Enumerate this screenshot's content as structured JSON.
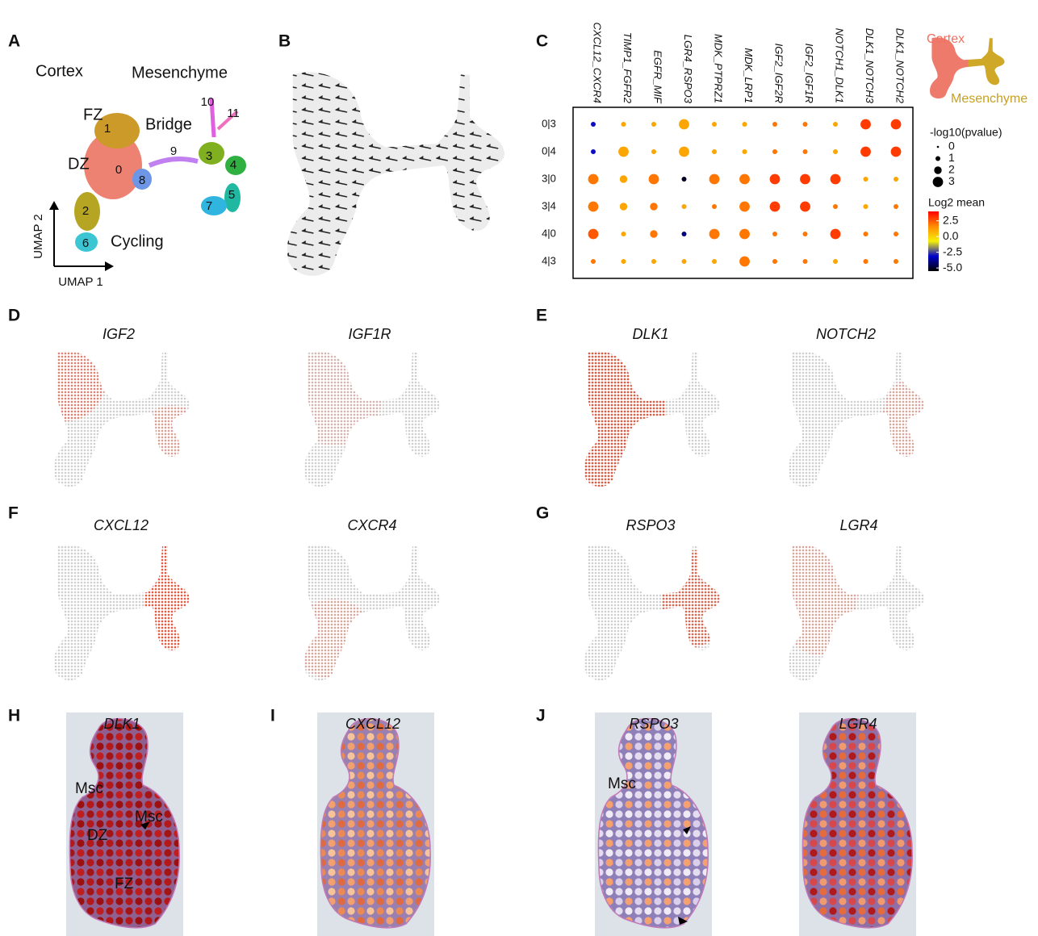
{
  "figure": {
    "a": {
      "label": "A",
      "regions": [
        "Cortex",
        "Mesenchyme",
        "FZ",
        "Bridge",
        "DZ",
        "Cycling"
      ],
      "clusters": [
        "0",
        "1",
        "2",
        "3",
        "4",
        "5",
        "6",
        "7",
        "8",
        "9",
        "10",
        "11"
      ],
      "axes": [
        "UMAP 2",
        "UMAP 1"
      ]
    },
    "b": {
      "label": "B"
    },
    "d": {
      "label": "D",
      "genes": [
        "IGF2",
        "IGF1R"
      ]
    },
    "e": {
      "label": "E",
      "genes": [
        "DLK1",
        "NOTCH2"
      ]
    },
    "f": {
      "label": "F",
      "genes": [
        "CXCL12",
        "CXCR4"
      ]
    },
    "g": {
      "label": "G",
      "genes": [
        "RSPO3",
        "LGR4"
      ]
    },
    "h": {
      "label": "H",
      "genes": [
        "DLK1"
      ],
      "annotations": [
        "Msc",
        "Msc",
        "DZ",
        "FZ"
      ]
    },
    "i": {
      "label": "I",
      "genes": [
        "CXCL12"
      ]
    },
    "j": {
      "label": "J",
      "genes": [
        "RSPO3",
        "LGR4"
      ],
      "annotations": [
        "Msc"
      ]
    }
  },
  "chart_data": {
    "type": "dotplot",
    "panel_label": "C",
    "inset_labels": [
      "Cortex",
      "Mesenchyme"
    ],
    "categories": [
      "CXCL12_CXCR4",
      "TIMP1_FGFR2",
      "EGFR_MIF",
      "LGR4_RSPO3",
      "MDK_PTPRZ1",
      "MDK_LRP1",
      "IGF2_IGF2R",
      "IGF2_IGF1R",
      "NOTCH1_DLK1",
      "DLK1_NOTCH3",
      "DLK1_NOTCH2"
    ],
    "rows": [
      "0|3",
      "0|4",
      "3|0",
      "3|4",
      "4|0",
      "4|3"
    ],
    "log2_mean": [
      [
        -3,
        1,
        1,
        1,
        1,
        1,
        2,
        2,
        1,
        3,
        3
      ],
      [
        -3,
        1,
        1,
        1,
        1,
        1,
        2,
        2,
        1,
        3,
        3
      ],
      [
        2,
        1,
        2,
        -5,
        2,
        2,
        3,
        3,
        3,
        1,
        1
      ],
      [
        2,
        1,
        2,
        1,
        2,
        2,
        3,
        3,
        2,
        1,
        2
      ],
      [
        2.5,
        1,
        2,
        -4,
        2,
        2,
        2,
        2,
        3,
        2,
        2
      ],
      [
        2,
        1,
        1,
        1,
        1,
        2,
        2,
        2,
        1,
        2,
        2
      ]
    ],
    "neg_log10_pvalue": [
      [
        1,
        1,
        1,
        3,
        1,
        1,
        1,
        1,
        1,
        3,
        3
      ],
      [
        1,
        3,
        1,
        3,
        1,
        1,
        1,
        1,
        1,
        3,
        3
      ],
      [
        3,
        2,
        3,
        1,
        3,
        3,
        3,
        3,
        3,
        1,
        1
      ],
      [
        3,
        2,
        2,
        1,
        1,
        3,
        3,
        3,
        1,
        1,
        1
      ],
      [
        3,
        1,
        2,
        1,
        3,
        3,
        1,
        1,
        3,
        1,
        1
      ],
      [
        1,
        1,
        1,
        1,
        1,
        3,
        1,
        1,
        1,
        1,
        1
      ]
    ],
    "size_legend": {
      "title": "-log10(pvalue)",
      "ticks": [
        0,
        1,
        2,
        3
      ]
    },
    "color_legend": {
      "title": "Log2 mean",
      "lim": [
        -5.5,
        4
      ],
      "ticks": [
        2.5,
        {
          "value": 0,
          "label": "0.0"
        },
        -2.5,
        {
          "value": -5,
          "label": "-5.0"
        }
      ],
      "colors": [
        "#000000",
        "#0000cc",
        "#f5f00a",
        "#ff8c00",
        "#ff0000"
      ]
    }
  }
}
